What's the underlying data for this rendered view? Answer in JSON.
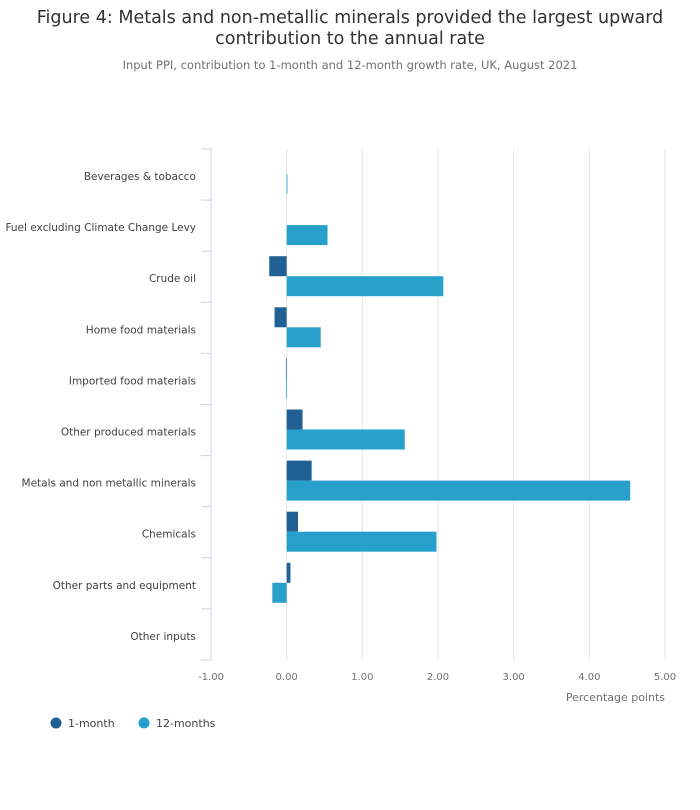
{
  "title": "Figure 4: Metals and non-metallic minerals provided the largest upward contribution to the annual rate",
  "subtitle": "Input PPI, contribution to 1-month and 12-month growth rate, UK, August 2021",
  "colors": {
    "one_month": "#206095",
    "twelve_months": "#27a0cc",
    "grid": "#e5e5e5",
    "axis": "#d0d0e8"
  },
  "chart_data": {
    "type": "bar",
    "orientation": "horizontal",
    "categories": [
      "Beverages & tobacco",
      "Fuel excluding Climate Change Levy",
      "Crude oil",
      "Home food materials",
      "Imported food materials",
      "Other produced materials",
      "Metals and non metallic minerals",
      "Chemicals",
      "Other parts and equipment",
      "Other inputs"
    ],
    "series": [
      {
        "name": "1-month",
        "values": [
          0.0,
          0.0,
          -0.23,
          -0.16,
          -0.01,
          0.21,
          0.33,
          0.15,
          0.05,
          0.0
        ]
      },
      {
        "name": "12-months",
        "values": [
          0.01,
          0.54,
          2.07,
          0.45,
          -0.01,
          1.56,
          4.54,
          1.98,
          -0.19,
          0.0
        ]
      }
    ],
    "xlim": [
      -1.0,
      5.0
    ],
    "xticks": [
      "-1.00",
      "0.00",
      "1.00",
      "2.00",
      "3.00",
      "4.00",
      "5.00"
    ],
    "xlabel": "Percentage points",
    "ylabel": "",
    "grid": true,
    "legend_position": "bottom-left"
  }
}
